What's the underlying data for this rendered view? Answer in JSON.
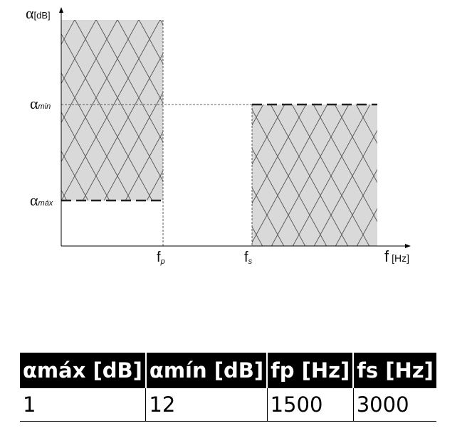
{
  "diagram": {
    "y_axis_symbol": "α",
    "y_axis_unit": "[dB]",
    "x_axis_symbol": "f",
    "x_axis_unit": "[Hz]",
    "alpha_min_symbol": "α",
    "alpha_min_sub": "min",
    "alpha_max_symbol": "α",
    "alpha_max_sub": "máx",
    "fp_symbol": "f",
    "fp_sub": "p",
    "fs_symbol": "f",
    "fs_sub": "s",
    "fill_color": "#d9d9d9",
    "hatch_color": "#555555"
  },
  "table": {
    "headers": [
      "αmáx [dB]",
      "αmín [dB]",
      "fp [Hz]",
      "fs [Hz]"
    ],
    "row": [
      "1",
      "12",
      "1500",
      "3000"
    ]
  }
}
